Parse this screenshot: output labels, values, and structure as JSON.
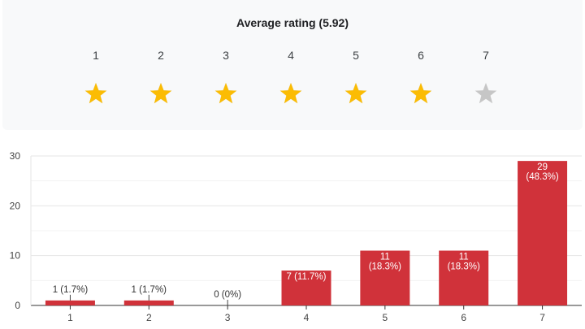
{
  "rating": {
    "title": "Average rating (5.92)",
    "scale": [
      "1",
      "2",
      "3",
      "4",
      "5",
      "6",
      "7"
    ],
    "average": 5.92,
    "max_stars": 7,
    "colors": {
      "filled": "#fbbc04",
      "empty": "#c6c6c6"
    }
  },
  "chart_data": {
    "type": "bar",
    "categories": [
      "1",
      "2",
      "3",
      "4",
      "5",
      "6",
      "7"
    ],
    "values": [
      1,
      1,
      0,
      7,
      11,
      11,
      29
    ],
    "labels": [
      [
        "1 (1.7%)"
      ],
      [
        "1 (1.7%)"
      ],
      [
        "0 (0%)"
      ],
      [
        "7 (11.7%)"
      ],
      [
        "11",
        "(18.3%)"
      ],
      [
        "11",
        "(18.3%)"
      ],
      [
        "29",
        "(48.3%)"
      ]
    ],
    "yticks": [
      "0",
      "10",
      "20",
      "30"
    ],
    "ylim": [
      0,
      30
    ],
    "grid": true,
    "bar_color": "#d0323a"
  }
}
